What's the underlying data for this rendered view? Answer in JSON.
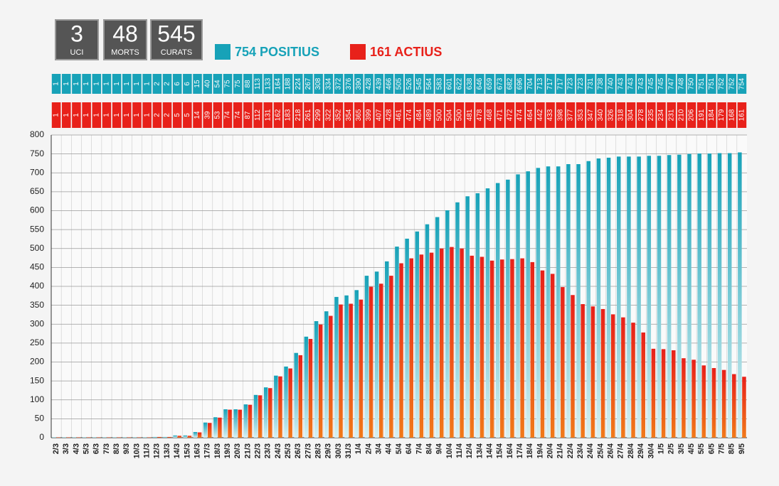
{
  "counters": [
    {
      "value": "3",
      "label": "UCI"
    },
    {
      "value": "48",
      "label": "MORTS"
    },
    {
      "value": "545",
      "label": "CURATS"
    }
  ],
  "chart_data": {
    "type": "bar",
    "categories": [
      "2/3",
      "3/3",
      "4/3",
      "5/3",
      "6/3",
      "7/3",
      "8/3",
      "9/3",
      "10/3",
      "11/3",
      "12/3",
      "13/3",
      "14/3",
      "15/3",
      "16/3",
      "17/3",
      "18/3",
      "19/3",
      "20/3",
      "21/3",
      "22/3",
      "23/3",
      "24/3",
      "25/3",
      "26/3",
      "27/3",
      "28/3",
      "29/3",
      "30/3",
      "31/3",
      "1/4",
      "2/4",
      "3/4",
      "4/4",
      "5/4",
      "6/4",
      "7/4",
      "8/4",
      "9/4",
      "10/4",
      "11/4",
      "12/4",
      "13/4",
      "14/4",
      "15/4",
      "16/4",
      "17/4",
      "18/4",
      "19/4",
      "20/4",
      "21/4",
      "22/4",
      "23/4",
      "24/4",
      "25/4",
      "26/4",
      "27/4",
      "28/4",
      "29/4",
      "30/4",
      "1/5",
      "2/5",
      "3/5",
      "4/5",
      "5/5",
      "6/5",
      "7/5",
      "8/5",
      "9/5"
    ],
    "series": [
      {
        "name": "754 POSITIUS",
        "color": "#17a2b8",
        "values": [
          1,
          1,
          1,
          1,
          1,
          1,
          1,
          1,
          1,
          1,
          2,
          2,
          6,
          6,
          15,
          40,
          54,
          75,
          75,
          88,
          113,
          133,
          164,
          188,
          224,
          267,
          308,
          334,
          372,
          376,
          390,
          428,
          439,
          466,
          505,
          526,
          545,
          564,
          583,
          601,
          622,
          638,
          646,
          659,
          673,
          682,
          696,
          704,
          713,
          717,
          717,
          723,
          723,
          731,
          738,
          740,
          743,
          743,
          743,
          745,
          745,
          747,
          748,
          750,
          751,
          751,
          752,
          752,
          754
        ]
      },
      {
        "name": "161 ACTIUS",
        "color": "#e8211a",
        "values": [
          1,
          1,
          1,
          1,
          1,
          1,
          1,
          1,
          1,
          1,
          2,
          2,
          5,
          5,
          14,
          39,
          53,
          74,
          74,
          87,
          112,
          131,
          162,
          183,
          218,
          261,
          299,
          322,
          352,
          354,
          365,
          399,
          407,
          428,
          461,
          474,
          484,
          489,
          500,
          504,
          500,
          481,
          478,
          468,
          471,
          472,
          474,
          464,
          442,
          433,
          398,
          377,
          353,
          347,
          340,
          326,
          318,
          304,
          278,
          235,
          234,
          231,
          210,
          206,
          191,
          184,
          179,
          168,
          161
        ]
      }
    ],
    "ylim": [
      0,
      800
    ],
    "yticks": [
      0,
      50,
      100,
      150,
      200,
      250,
      300,
      350,
      400,
      450,
      500,
      550,
      600,
      650,
      700,
      750,
      800
    ],
    "grid": true
  }
}
